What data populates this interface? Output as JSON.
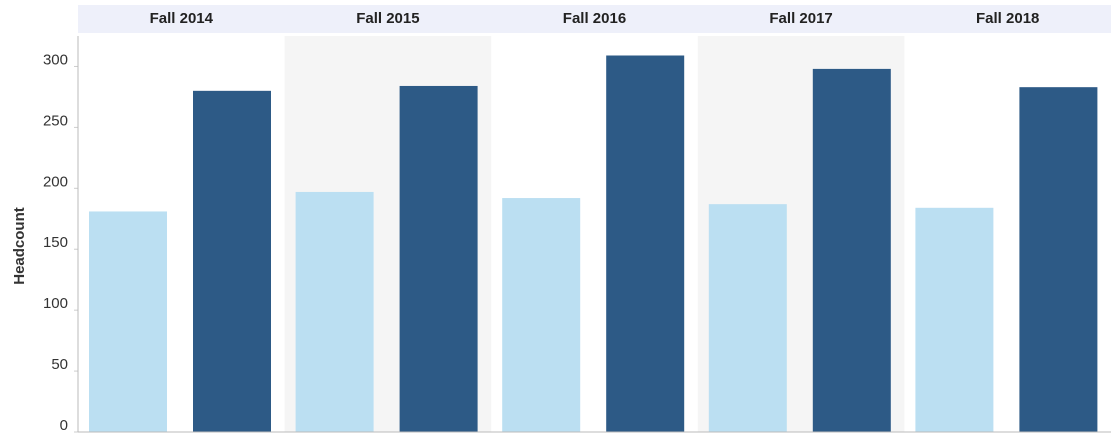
{
  "chart_data": {
    "type": "bar",
    "categories": [
      "Fall 2014",
      "Fall 2015",
      "Fall 2016",
      "Fall 2017",
      "Fall 2018"
    ],
    "series": [
      {
        "color": "#bbdff2",
        "values": [
          181,
          197,
          192,
          187,
          184
        ]
      },
      {
        "color": "#2d5a86",
        "values": [
          280,
          284,
          309,
          298,
          283
        ]
      }
    ],
    "y_label": "Headcount",
    "ylim": [
      0,
      325
    ],
    "yticks": [
      0,
      50,
      100,
      150,
      200,
      250,
      300
    ],
    "grid": false
  }
}
